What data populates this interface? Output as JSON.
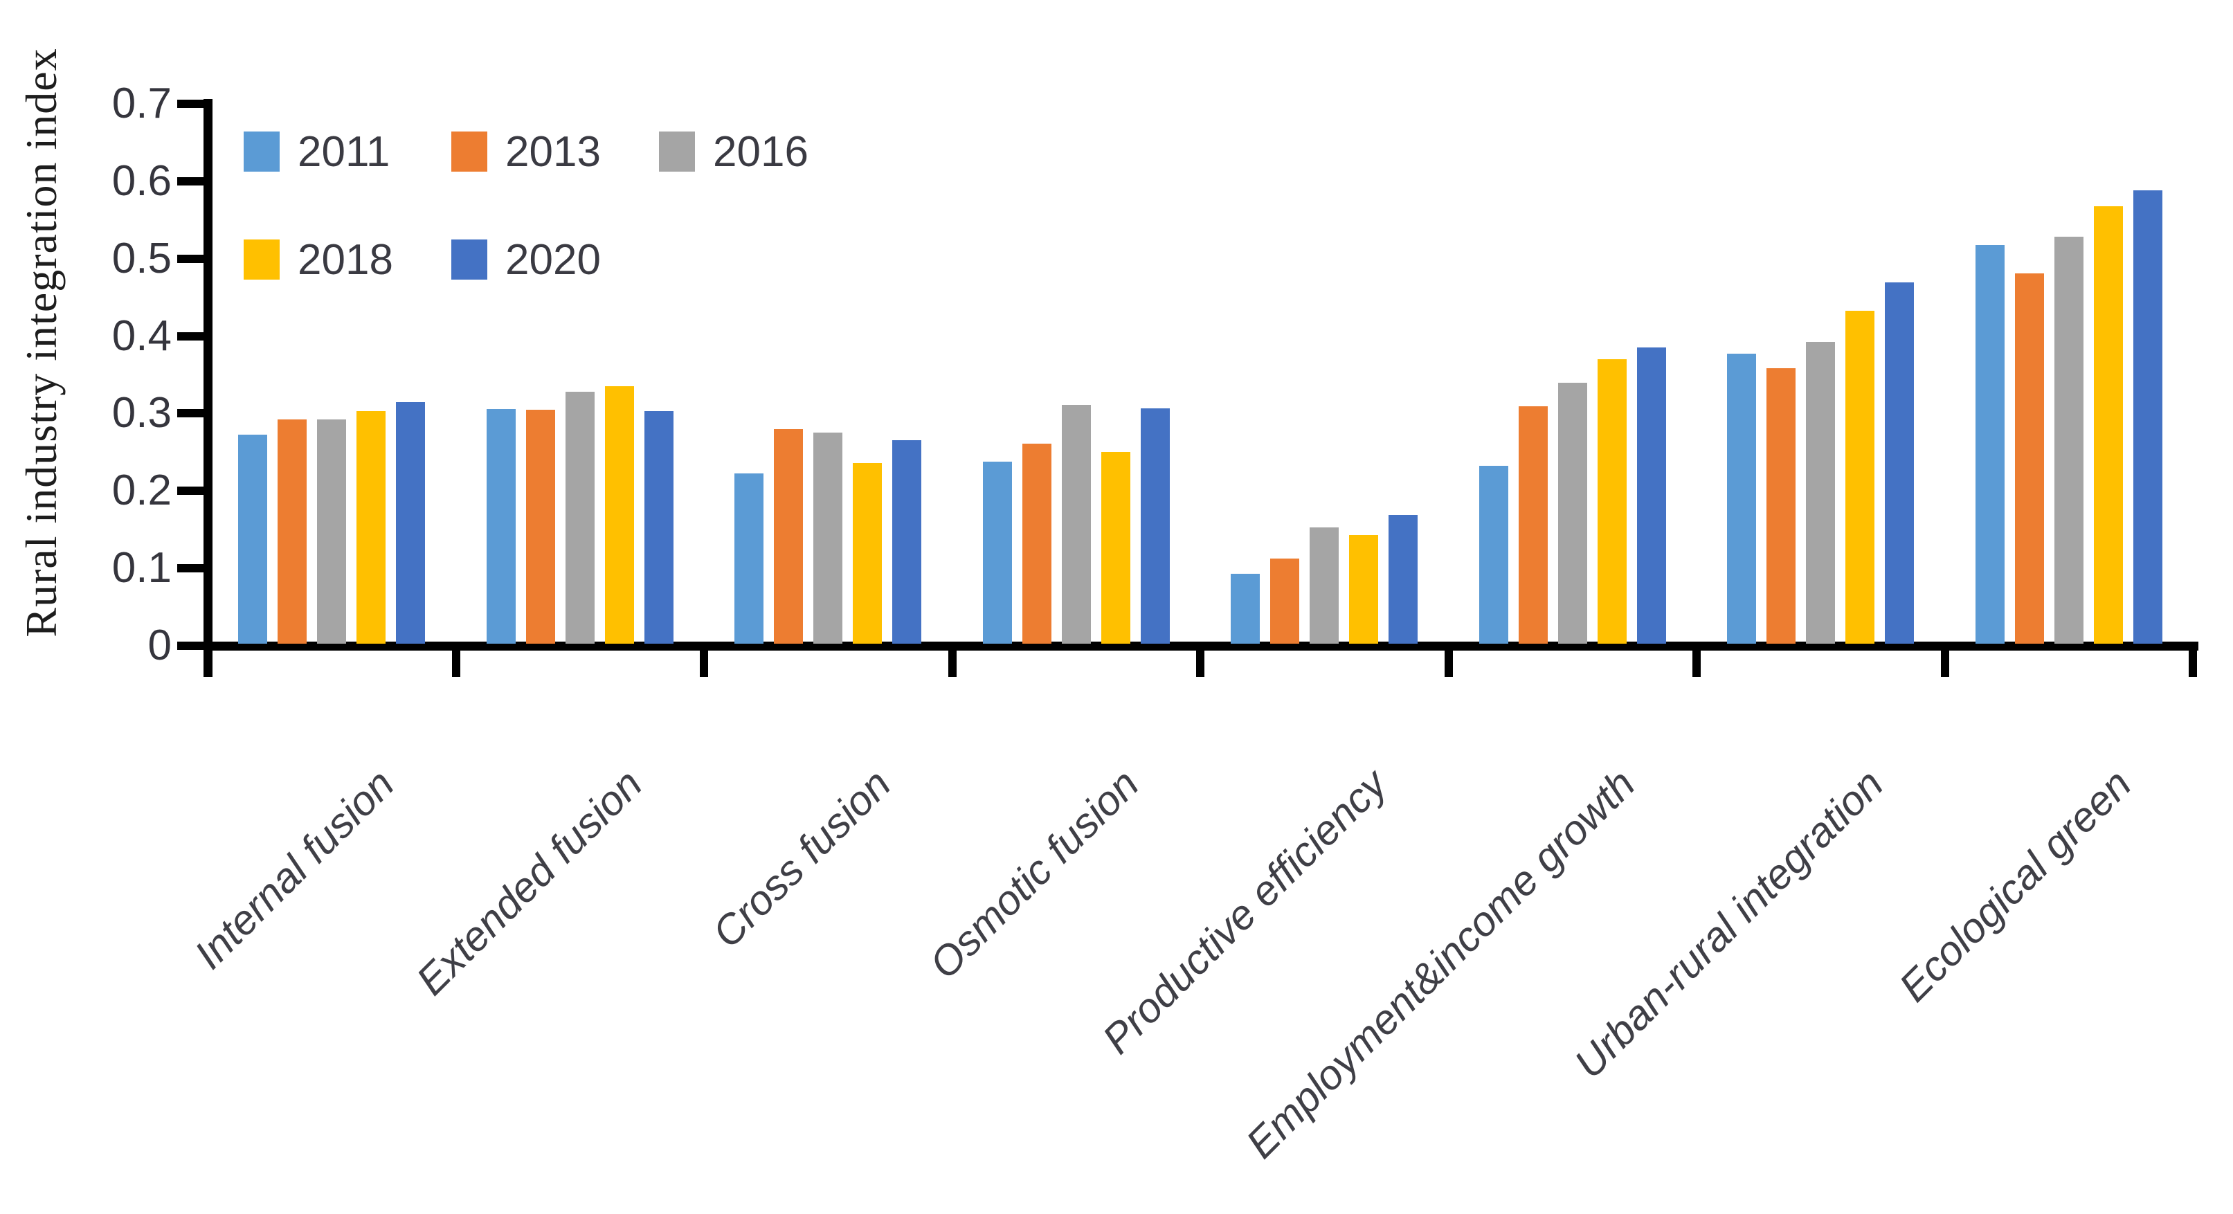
{
  "chart_data": {
    "type": "bar",
    "title": "",
    "ylabel": "Rural industry integration index",
    "xlabel": "",
    "ylim": [
      0,
      0.7
    ],
    "ytick_step": 0.1,
    "ytick_labels": [
      "0",
      "0.1",
      "0.2",
      "0.3",
      "0.4",
      "0.5",
      "0.6",
      "0.7"
    ],
    "grid": false,
    "legend_position": "inside top-left, two rows",
    "legend_rows": [
      [
        "2011",
        "2013",
        "2016"
      ],
      [
        "2018",
        "2020"
      ]
    ],
    "categories": [
      "Internal fusion",
      "Extended fusion",
      "Cross fusion",
      "Osmotic fusion",
      "Productive efficiency",
      "Employment&income growth",
      "Urban-rural integration",
      "Ecological green"
    ],
    "series": [
      {
        "name": "2011",
        "color": "#5B9BD5",
        "values": [
          0.27,
          0.303,
          0.22,
          0.235,
          0.09,
          0.23,
          0.375,
          0.515
        ]
      },
      {
        "name": "2013",
        "color": "#ED7D31",
        "values": [
          0.29,
          0.302,
          0.277,
          0.258,
          0.11,
          0.307,
          0.356,
          0.478
        ]
      },
      {
        "name": "2016",
        "color": "#A5A5A5",
        "values": [
          0.29,
          0.325,
          0.273,
          0.308,
          0.15,
          0.337,
          0.39,
          0.526
        ]
      },
      {
        "name": "2018",
        "color": "#FFC000",
        "values": [
          0.3,
          0.333,
          0.233,
          0.248,
          0.14,
          0.367,
          0.43,
          0.565
        ]
      },
      {
        "name": "2020",
        "color": "#4472C4",
        "values": [
          0.312,
          0.3,
          0.263,
          0.304,
          0.166,
          0.383,
          0.467,
          0.586
        ]
      }
    ],
    "axis_color": "#000000",
    "tick_label_color": "#35353d",
    "category_label_color": "#3f3f46"
  }
}
